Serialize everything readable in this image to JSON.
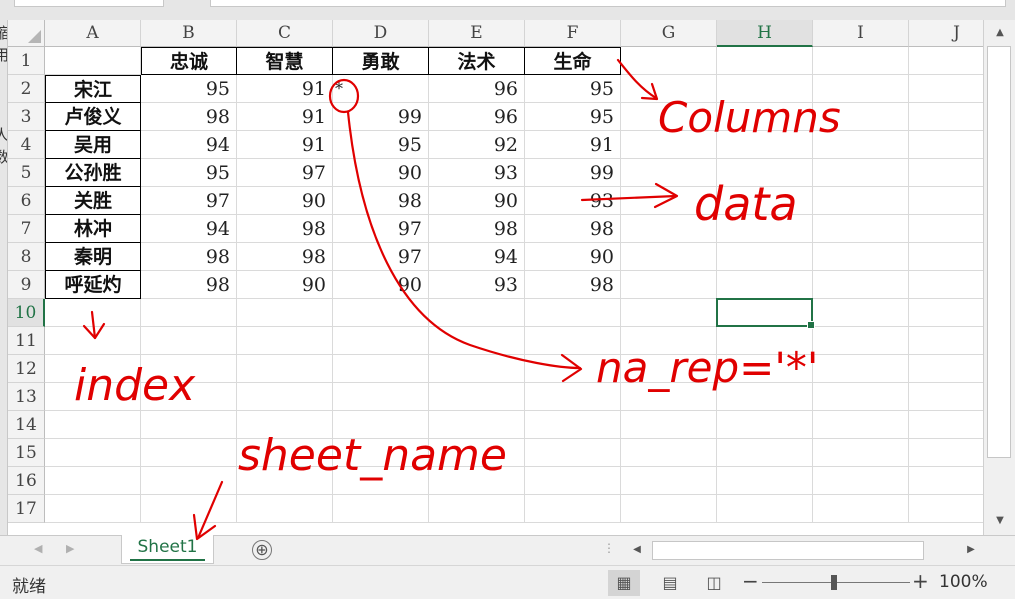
{
  "columns": [
    "A",
    "B",
    "C",
    "D",
    "E",
    "F",
    "G",
    "H",
    "I",
    "J"
  ],
  "selected_column": "H",
  "selected_row": "10",
  "rows": [
    "1",
    "2",
    "3",
    "4",
    "5",
    "6",
    "7",
    "8",
    "9",
    "10",
    "11",
    "12",
    "13",
    "14",
    "15",
    "16",
    "17"
  ],
  "table": {
    "headers": [
      "忠诚",
      "智慧",
      "勇敢",
      "法术",
      "生命"
    ],
    "index": [
      "宋江",
      "卢俊义",
      "吴用",
      "公孙胜",
      "关胜",
      "林冲",
      "秦明",
      "呼延灼"
    ],
    "values": [
      [
        "95",
        "91",
        "*",
        "96",
        "95"
      ],
      [
        "98",
        "91",
        "99",
        "96",
        "95"
      ],
      [
        "94",
        "91",
        "95",
        "92",
        "91"
      ],
      [
        "95",
        "97",
        "90",
        "93",
        "99"
      ],
      [
        "97",
        "90",
        "98",
        "90",
        "93"
      ],
      [
        "94",
        "98",
        "97",
        "98",
        "98"
      ],
      [
        "98",
        "98",
        "97",
        "94",
        "90"
      ],
      [
        "98",
        "90",
        "90",
        "93",
        "98"
      ]
    ]
  },
  "left_strip_chars": [
    "缩",
    "用",
    "人",
    "数"
  ],
  "annotations": {
    "columns": "Columns",
    "data": "data",
    "index": "index",
    "na_rep": "na_rep='*'",
    "sheet_name": "sheet_name",
    "color": "#e00000"
  },
  "sheet_tab": "Sheet1",
  "add_sheet_icon": "⊕",
  "status": "就绪",
  "zoom_level": "100%",
  "accent_color": "#217346"
}
